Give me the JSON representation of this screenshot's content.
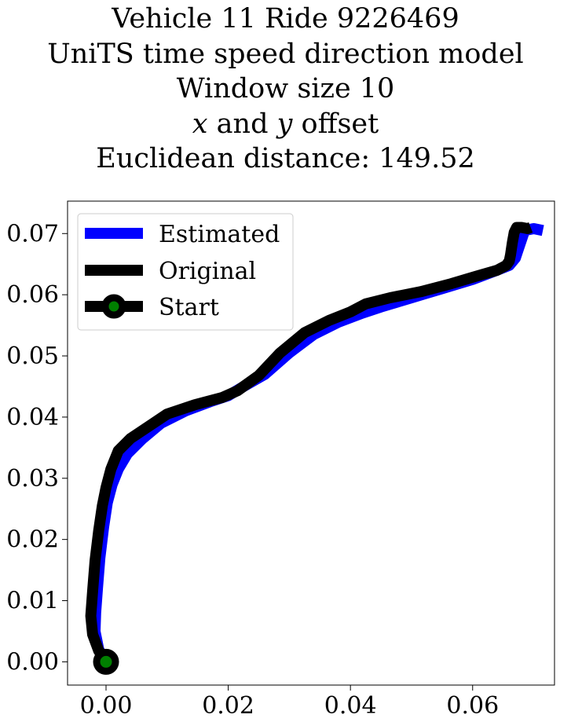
{
  "title": {
    "line1": "Vehicle 11 Ride 9226469",
    "line2": "UniTS time speed direction model",
    "line3": "Window size 10",
    "line4_var_x": "x",
    "line4_and": " and ",
    "line4_var_y": "y",
    "line4_rest": " offset",
    "line5": "Euclidean distance: 149.52"
  },
  "chart_data": {
    "type": "line",
    "xlim": [
      -0.0063,
      0.0734
    ],
    "ylim": [
      -0.0038,
      0.0753
    ],
    "x_ticks": [
      0.0,
      0.02,
      0.04,
      0.06
    ],
    "x_tick_labels": [
      "0.00",
      "0.02",
      "0.04",
      "0.06"
    ],
    "y_ticks": [
      0.0,
      0.01,
      0.02,
      0.03,
      0.04,
      0.05,
      0.06,
      0.07
    ],
    "y_tick_labels": [
      "0.00",
      "0.01",
      "0.02",
      "0.03",
      "0.04",
      "0.05",
      "0.06",
      "0.07"
    ],
    "grid": false,
    "legend_position": "upper-left",
    "series": [
      {
        "name": "Estimated",
        "color": "#0000ff",
        "x": [
          0.0,
          -0.0012,
          -0.0018,
          -0.0017,
          -0.0014,
          -0.001,
          -0.0004,
          0.0002,
          0.001,
          0.002,
          0.0035,
          0.006,
          0.009,
          0.013,
          0.017,
          0.02,
          0.0225,
          0.026,
          0.03,
          0.034,
          0.038,
          0.042,
          0.045,
          0.05,
          0.055,
          0.06,
          0.064,
          0.066,
          0.067,
          0.0675,
          0.068,
          0.0685,
          0.07,
          0.0715
        ],
        "y": [
          0.0,
          0.002,
          0.005,
          0.008,
          0.012,
          0.017,
          0.022,
          0.026,
          0.029,
          0.0315,
          0.034,
          0.0365,
          0.039,
          0.041,
          0.0425,
          0.0435,
          0.045,
          0.047,
          0.0505,
          0.0535,
          0.0555,
          0.057,
          0.058,
          0.0595,
          0.061,
          0.0625,
          0.064,
          0.0648,
          0.066,
          0.0675,
          0.069,
          0.0705,
          0.0708,
          0.0705
        ]
      },
      {
        "name": "Original",
        "color": "#000000",
        "x": [
          0.0,
          -0.0012,
          -0.0022,
          -0.0025,
          -0.0022,
          -0.0018,
          -0.0012,
          -0.0006,
          0.0,
          0.0008,
          0.002,
          0.004,
          0.007,
          0.01,
          0.0145,
          0.019,
          0.0215,
          0.025,
          0.0285,
          0.0325,
          0.0365,
          0.04,
          0.0425,
          0.0465,
          0.0515,
          0.0565,
          0.0605,
          0.064,
          0.0655,
          0.066,
          0.0662,
          0.0665,
          0.0668,
          0.0672,
          0.068,
          0.069,
          0.0695
        ],
        "y": [
          0.0,
          0.0018,
          0.0045,
          0.0075,
          0.0115,
          0.0165,
          0.0215,
          0.0255,
          0.0285,
          0.0315,
          0.0345,
          0.0365,
          0.0385,
          0.0405,
          0.042,
          0.0432,
          0.0443,
          0.0468,
          0.0505,
          0.0538,
          0.0558,
          0.0572,
          0.0585,
          0.0595,
          0.0605,
          0.0618,
          0.063,
          0.064,
          0.0648,
          0.0655,
          0.0665,
          0.0685,
          0.0702,
          0.071,
          0.071,
          0.0708,
          0.071
        ]
      }
    ],
    "start_marker": {
      "name": "Start",
      "x": 0.0,
      "y": 0.0,
      "edge_color": "#000000",
      "face_color": "#008000"
    }
  }
}
